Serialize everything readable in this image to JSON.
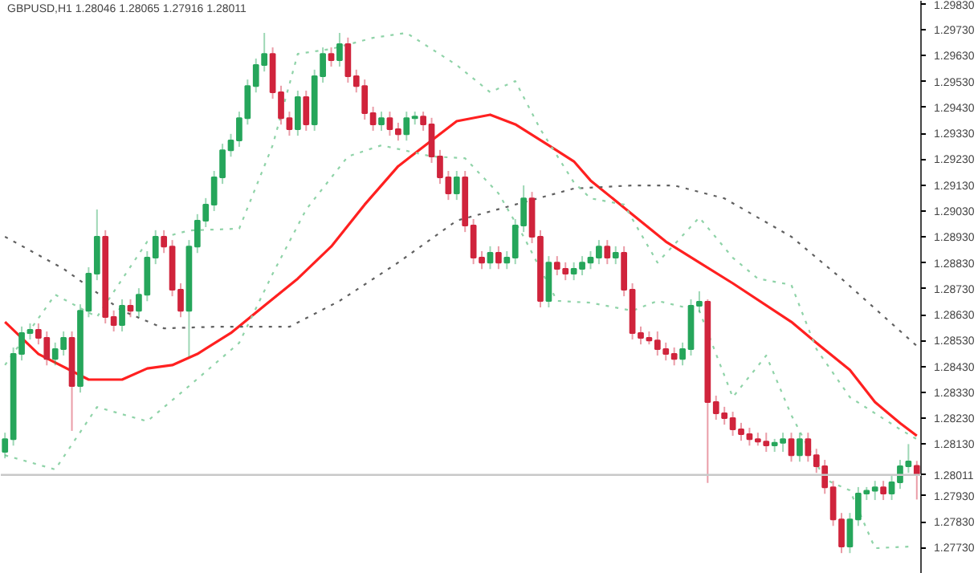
{
  "chart_data": {
    "type": "candlestick",
    "title": "GBPUSD,H1  1.28046 1.28065 1.27916 1.28011",
    "categories": [
      null,
      null,
      null,
      null,
      null,
      null,
      null,
      null,
      null,
      null,
      null,
      null,
      null,
      null,
      null,
      null,
      null,
      null,
      null,
      null,
      null,
      null,
      null,
      null,
      null,
      null,
      null,
      null,
      null,
      null,
      null,
      null,
      null,
      null,
      null,
      null,
      null,
      null,
      null,
      null,
      null,
      null,
      null,
      null,
      null,
      null,
      null,
      null,
      null,
      null,
      null,
      null,
      null,
      null,
      null,
      null,
      null,
      null,
      null,
      null,
      null,
      null,
      null,
      null,
      null,
      null,
      null,
      null,
      null,
      null,
      null,
      null,
      null,
      null,
      null,
      null,
      null,
      null,
      null,
      null,
      null,
      null,
      null,
      null,
      null,
      null,
      null,
      null,
      null,
      null,
      null,
      null,
      null,
      null,
      null,
      null,
      null,
      null,
      null,
      null,
      null,
      null,
      null,
      null,
      null,
      null,
      null,
      null,
      null,
      null
    ],
    "ohlc": [
      [
        1.281,
        1.28174,
        1.28075,
        1.28149
      ],
      [
        1.28149,
        1.28503,
        1.28124,
        1.28478
      ],
      [
        1.28478,
        1.28584,
        1.28453,
        1.28559
      ],
      [
        1.28559,
        1.28596,
        1.28534,
        1.28571
      ],
      [
        1.28571,
        1.28596,
        1.28515,
        1.2854
      ],
      [
        1.2854,
        1.28565,
        1.28434,
        1.28459
      ],
      [
        1.28459,
        1.28522,
        1.28434,
        1.28497
      ],
      [
        1.28497,
        1.28565,
        1.28472,
        1.2854
      ],
      [
        1.2854,
        1.28565,
        1.28181,
        1.28354
      ],
      [
        1.28354,
        1.2867,
        1.28329,
        1.28645
      ],
      [
        1.28645,
        1.28813,
        1.2862,
        1.28788
      ],
      [
        1.28788,
        1.29036,
        1.28763,
        1.28931
      ],
      [
        1.28931,
        1.28956,
        1.28596,
        1.28621
      ],
      [
        1.28621,
        1.28646,
        1.28565,
        1.2859
      ],
      [
        1.2859,
        1.28689,
        1.28565,
        1.28664
      ],
      [
        1.28664,
        1.28689,
        1.2862,
        1.28645
      ],
      [
        1.28645,
        1.28732,
        1.2862,
        1.28707
      ],
      [
        1.28707,
        1.28875,
        1.28682,
        1.2885
      ],
      [
        1.2885,
        1.28956,
        1.28825,
        1.28931
      ],
      [
        1.28931,
        1.28956,
        1.28868,
        1.28893
      ],
      [
        1.28893,
        1.28918,
        1.28701,
        1.28726
      ],
      [
        1.28726,
        1.28751,
        1.2862,
        1.28645
      ],
      [
        1.28645,
        1.28918,
        1.28466,
        1.28893
      ],
      [
        1.28893,
        1.29018,
        1.28868,
        1.28993
      ],
      [
        1.28993,
        1.2908,
        1.28968,
        1.29055
      ],
      [
        1.29055,
        1.29185,
        1.2903,
        1.2916
      ],
      [
        1.2916,
        1.2929,
        1.29135,
        1.29265
      ],
      [
        1.29265,
        1.29328,
        1.2924,
        1.29303
      ],
      [
        1.29303,
        1.29414,
        1.29278,
        1.29389
      ],
      [
        1.29389,
        1.29538,
        1.29364,
        1.29513
      ],
      [
        1.29513,
        1.29619,
        1.29488,
        1.29594
      ],
      [
        1.29594,
        1.29718,
        1.29569,
        1.29637
      ],
      [
        1.29637,
        1.29662,
        1.29464,
        1.29489
      ],
      [
        1.29489,
        1.29514,
        1.29364,
        1.29389
      ],
      [
        1.29389,
        1.29414,
        1.29321,
        1.29346
      ],
      [
        1.29346,
        1.29495,
        1.29321,
        1.2947
      ],
      [
        1.2947,
        1.29495,
        1.2934,
        1.29365
      ],
      [
        1.29365,
        1.29576,
        1.2934,
        1.29551
      ],
      [
        1.29551,
        1.29662,
        1.29526,
        1.29637
      ],
      [
        1.29637,
        1.29662,
        1.29588,
        1.29613
      ],
      [
        1.29613,
        1.29718,
        1.29588,
        1.29675
      ],
      [
        1.29675,
        1.297,
        1.29526,
        1.29551
      ],
      [
        1.29551,
        1.29576,
        1.29488,
        1.29513
      ],
      [
        1.29513,
        1.29538,
        1.29383,
        1.29408
      ],
      [
        1.29408,
        1.29433,
        1.2934,
        1.29365
      ],
      [
        1.29365,
        1.29414,
        1.2934,
        1.29389
      ],
      [
        1.29389,
        1.29414,
        1.29321,
        1.29346
      ],
      [
        1.29346,
        1.29371,
        1.29302,
        1.29327
      ],
      [
        1.29327,
        1.29414,
        1.29302,
        1.29389
      ],
      [
        1.29389,
        1.29414,
        1.29364,
        1.29395
      ],
      [
        1.29395,
        1.29414,
        1.2934,
        1.29365
      ],
      [
        1.29365,
        1.2939,
        1.29216,
        1.29241
      ],
      [
        1.29241,
        1.29266,
        1.29135,
        1.2916
      ],
      [
        1.2916,
        1.29185,
        1.29073,
        1.29098
      ],
      [
        1.29098,
        1.29185,
        1.29073,
        1.2916
      ],
      [
        1.2916,
        1.29185,
        1.28949,
        1.28974
      ],
      [
        1.28974,
        1.28999,
        1.28825,
        1.2885
      ],
      [
        1.2885,
        1.28875,
        1.28806,
        1.28831
      ],
      [
        1.28831,
        1.28894,
        1.28806,
        1.28869
      ],
      [
        1.28869,
        1.28894,
        1.28806,
        1.28831
      ],
      [
        1.28831,
        1.28875,
        1.28806,
        1.2885
      ],
      [
        1.2885,
        1.28999,
        1.28825,
        1.28974
      ],
      [
        1.28974,
        1.29129,
        1.28949,
        1.29079
      ],
      [
        1.29079,
        1.29104,
        1.28906,
        1.28931
      ],
      [
        1.28931,
        1.28956,
        1.28658,
        1.28683
      ],
      [
        1.28683,
        1.28856,
        1.28658,
        1.28831
      ],
      [
        1.28831,
        1.28856,
        1.28782,
        1.28807
      ],
      [
        1.28807,
        1.28832,
        1.28763,
        1.28788
      ],
      [
        1.28788,
        1.28832,
        1.28763,
        1.28807
      ],
      [
        1.28807,
        1.28856,
        1.28782,
        1.28831
      ],
      [
        1.28831,
        1.28875,
        1.28806,
        1.2885
      ],
      [
        1.2885,
        1.28918,
        1.28825,
        1.28893
      ],
      [
        1.28893,
        1.28918,
        1.28825,
        1.2885
      ],
      [
        1.2885,
        1.28894,
        1.28825,
        1.28869
      ],
      [
        1.28869,
        1.28894,
        1.28701,
        1.28726
      ],
      [
        1.28726,
        1.28751,
        1.28534,
        1.28559
      ],
      [
        1.28559,
        1.28584,
        1.28515,
        1.2854
      ],
      [
        1.2854,
        1.28565,
        1.28515,
        1.2853
      ],
      [
        1.2853,
        1.28565,
        1.28472,
        1.28497
      ],
      [
        1.28497,
        1.28522,
        1.28453,
        1.28478
      ],
      [
        1.28478,
        1.28503,
        1.28434,
        1.28459
      ],
      [
        1.28459,
        1.28522,
        1.28434,
        1.28497
      ],
      [
        1.28497,
        1.28689,
        1.28472,
        1.28664
      ],
      [
        1.28664,
        1.2872,
        1.28639,
        1.2868
      ],
      [
        1.2868,
        1.28689,
        1.2798,
        1.28292
      ],
      [
        1.28292,
        1.28317,
        1.28224,
        1.28249
      ],
      [
        1.28249,
        1.28274,
        1.28205,
        1.2823
      ],
      [
        1.2823,
        1.28255,
        1.28162,
        1.28187
      ],
      [
        1.28187,
        1.28212,
        1.28143,
        1.28168
      ],
      [
        1.28168,
        1.28193,
        1.28124,
        1.28149
      ],
      [
        1.28149,
        1.28174,
        1.28124,
        1.2814
      ],
      [
        1.2814,
        1.28174,
        1.281,
        1.28125
      ],
      [
        1.28125,
        1.2815,
        1.281,
        1.28135
      ],
      [
        1.28135,
        1.28174,
        1.281,
        1.28149
      ],
      [
        1.28149,
        1.28174,
        1.28062,
        1.28087
      ],
      [
        1.28087,
        1.28174,
        1.28062,
        1.28149
      ],
      [
        1.28149,
        1.28174,
        1.28062,
        1.28087
      ],
      [
        1.28087,
        1.28112,
        1.28019,
        1.28044
      ],
      [
        1.28044,
        1.28069,
        1.27938,
        1.27963
      ],
      [
        1.27963,
        1.27988,
        1.27814,
        1.27839
      ],
      [
        1.27839,
        1.27864,
        1.27709,
        1.27734
      ],
      [
        1.27734,
        1.27864,
        1.27709,
        1.27839
      ],
      [
        1.27839,
        1.27964,
        1.27814,
        1.27939
      ],
      [
        1.27939,
        1.27964,
        1.27914,
        1.2795
      ],
      [
        1.2795,
        1.27988,
        1.27914,
        1.27963
      ],
      [
        1.27963,
        1.27988,
        1.27914,
        1.27939
      ],
      [
        1.27939,
        1.28007,
        1.27914,
        1.27982
      ],
      [
        1.27982,
        1.28069,
        1.27957,
        1.28044
      ],
      [
        1.28044,
        1.2813,
        1.28019,
        1.28063
      ],
      [
        1.28046,
        1.28065,
        1.27916,
        1.28011
      ]
    ],
    "colors": [
      "#26a65b",
      "#26a65b",
      "#26a65b",
      "#26a65b",
      "#d0243c",
      "#d0243c",
      "#26a65b",
      "#26a65b",
      "#d0243c",
      "#26a65b",
      "#26a65b",
      "#26a65b",
      "#d0243c",
      "#d0243c",
      "#26a65b",
      "#d0243c",
      "#26a65b",
      "#26a65b",
      "#26a65b",
      "#d0243c",
      "#d0243c",
      "#d0243c",
      "#26a65b",
      "#26a65b",
      "#26a65b",
      "#26a65b",
      "#26a65b",
      "#26a65b",
      "#26a65b",
      "#26a65b",
      "#26a65b",
      "#26a65b",
      "#d0243c",
      "#d0243c",
      "#d0243c",
      "#26a65b",
      "#d0243c",
      "#26a65b",
      "#26a65b",
      "#d0243c",
      "#26a65b",
      "#d0243c",
      "#d0243c",
      "#d0243c",
      "#d0243c",
      "#26a65b",
      "#d0243c",
      "#d0243c",
      "#26a65b",
      "#26a65b",
      "#d0243c",
      "#d0243c",
      "#d0243c",
      "#d0243c",
      "#26a65b",
      "#d0243c",
      "#d0243c",
      "#d0243c",
      "#26a65b",
      "#d0243c",
      "#26a65b",
      "#26a65b",
      "#26a65b",
      "#d0243c",
      "#d0243c",
      "#26a65b",
      "#d0243c",
      "#d0243c",
      "#26a65b",
      "#26a65b",
      "#26a65b",
      "#26a65b",
      "#d0243c",
      "#26a65b",
      "#d0243c",
      "#d0243c",
      "#d0243c",
      "#d0243c",
      "#d0243c",
      "#d0243c",
      "#d0243c",
      "#26a65b",
      "#26a65b",
      "#26a65b",
      "#d0243c",
      "#d0243c",
      "#d0243c",
      "#d0243c",
      "#d0243c",
      "#d0243c",
      "#d0243c",
      "#d0243c",
      "#26a65b",
      "#26a65b",
      "#d0243c",
      "#26a65b",
      "#d0243c",
      "#d0243c",
      "#d0243c",
      "#d0243c",
      "#d0243c",
      "#26a65b",
      "#26a65b",
      "#26a65b",
      "#26a65b",
      "#d0243c",
      "#26a65b",
      "#26a65b",
      "#26a65b",
      "#d0243c"
    ],
    "series": [
      {
        "type": "line",
        "color": "#ff2020",
        "line_style": "solid",
        "values": [
          1.28602,
          null,
          null,
          null,
          1.28478,
          null,
          null,
          null,
          null,
          null,
          1.28379,
          null,
          null,
          null,
          1.28379,
          null,
          null,
          1.28422,
          null,
          null,
          1.28435,
          null,
          null,
          1.28478,
          null,
          null,
          null,
          1.28559,
          null,
          null,
          null,
          1.28664,
          null,
          null,
          null,
          1.28769,
          null,
          null,
          null,
          1.28893,
          null,
          null,
          null,
          1.29055,
          null,
          null,
          null,
          1.29203,
          null,
          null,
          null,
          1.29303,
          null,
          null,
          1.29377,
          null,
          null,
          null,
          1.29402,
          null,
          null,
          1.29365,
          null,
          null,
          null,
          1.29284,
          null,
          null,
          1.29222,
          null,
          1.29148,
          null,
          null,
          null,
          null,
          1.29017,
          null,
          null,
          null,
          1.28912,
          null,
          null,
          null,
          1.28831,
          null,
          null,
          null,
          1.28751,
          null,
          null,
          null,
          null,
          null,
          null,
          1.28602,
          null,
          null,
          1.28521,
          null,
          null,
          null,
          1.28416,
          null,
          null,
          1.28292,
          null,
          null,
          1.28211,
          null,
          1.28162
        ]
      },
      {
        "type": "line",
        "color": "#606060",
        "line_style": "dotted",
        "values": [
          1.28931,
          null,
          null,
          null,
          null,
          null,
          null,
          1.28807,
          null,
          null,
          null,
          null,
          null,
          null,
          1.28645,
          null,
          null,
          null,
          null,
          1.28577,
          null,
          null,
          null,
          null,
          null,
          1.28583,
          null,
          null,
          null,
          null,
          null,
          null,
          null,
          null,
          1.28583,
          null,
          null,
          null,
          null,
          null,
          1.28683,
          null,
          null,
          null,
          null,
          null,
          null,
          1.28831,
          null,
          null,
          null,
          null,
          null,
          null,
          1.28993,
          null,
          null,
          null,
          null,
          null,
          null,
          1.29055,
          null,
          null,
          null,
          null,
          null,
          null,
          1.29117,
          null,
          null,
          null,
          null,
          null,
          null,
          1.29129,
          null,
          null,
          null,
          null,
          1.29129,
          null,
          null,
          null,
          null,
          null,
          1.29079,
          null,
          null,
          null,
          null,
          null,
          null,
          null,
          1.28931,
          null,
          null,
          null,
          null,
          null,
          1.28769,
          null,
          null,
          null,
          null,
          null,
          null,
          null,
          null,
          1.28509
        ]
      },
      {
        "type": "line",
        "color": "#8fd3a8",
        "line_style": "dotted",
        "values": [
          1.28435,
          null,
          null,
          null,
          null,
          null,
          1.28707,
          null,
          null,
          null,
          null,
          1.28621,
          null,
          null,
          null,
          null,
          null,
          1.28912,
          null,
          null,
          null,
          null,
          1.28955,
          null,
          null,
          null,
          null,
          null,
          1.28962,
          null,
          null,
          null,
          1.29284,
          null,
          null,
          1.29637,
          null,
          null,
          null,
          1.29656,
          null,
          null,
          null,
          null,
          1.29699,
          null,
          null,
          null,
          1.29718,
          null,
          null,
          null,
          null,
          null,
          1.29594,
          null,
          null,
          null,
          1.29489,
          null,
          null,
          1.29532,
          null,
          null,
          1.29346,
          null,
          null,
          null,
          1.29141,
          null,
          1.29079,
          null,
          null,
          null,
          1.29055,
          null,
          null,
          null,
          1.28831,
          null,
          null,
          null,
          null,
          1.29005,
          null,
          null,
          null,
          1.2885,
          null,
          null,
          1.28769,
          null,
          null,
          null,
          1.28745,
          null,
          null,
          1.28497,
          null,
          null,
          null,
          1.28311,
          null,
          null,
          null,
          null,
          null,
          1.28187,
          null,
          1.28149
        ]
      },
      {
        "type": "line",
        "color": "#8fd3a8",
        "line_style": "dotted",
        "values": [
          1.28087,
          null,
          null,
          null,
          null,
          null,
          1.28032,
          null,
          null,
          null,
          null,
          1.28273,
          null,
          null,
          null,
          null,
          null,
          1.28218,
          null,
          null,
          null,
          null,
          1.28354,
          null,
          null,
          null,
          null,
          null,
          1.28521,
          null,
          null,
          null,
          1.28788,
          null,
          null,
          null,
          1.29036,
          null,
          null,
          null,
          null,
          1.29241,
          null,
          null,
          null,
          1.29284,
          null,
          null,
          null,
          null,
          null,
          1.29241,
          null,
          null,
          null,
          1.29234,
          null,
          null,
          null,
          1.29098,
          null,
          null,
          1.28931,
          null,
          null,
          null,
          1.28683,
          null,
          null,
          null,
          1.28676,
          null,
          null,
          null,
          null,
          1.28645,
          null,
          null,
          1.28683,
          null,
          null,
          null,
          null,
          1.28645,
          null,
          null,
          null,
          1.28311,
          null,
          null,
          null,
          1.28472,
          null,
          null,
          1.28242,
          null,
          null,
          null,
          1.27994,
          null,
          null,
          1.27951,
          null,
          null,
          1.27728,
          null,
          null,
          null,
          1.27734,
          null
        ]
      }
    ],
    "ylim": [
      1.27629,
      1.29842
    ],
    "yticks": [
      {
        "value": 1.2983,
        "label": "1.29830"
      },
      {
        "value": 1.2973,
        "label": "1.29730"
      },
      {
        "value": 1.2963,
        "label": "1.29630"
      },
      {
        "value": 1.2953,
        "label": "1.29530"
      },
      {
        "value": 1.2943,
        "label": "1.29430"
      },
      {
        "value": 1.2933,
        "label": "1.29330"
      },
      {
        "value": 1.2923,
        "label": "1.29230"
      },
      {
        "value": 1.2913,
        "label": "1.29130"
      },
      {
        "value": 1.2903,
        "label": "1.29030"
      },
      {
        "value": 1.2893,
        "label": "1.28930"
      },
      {
        "value": 1.2883,
        "label": "1.28830"
      },
      {
        "value": 1.2873,
        "label": "1.28730"
      },
      {
        "value": 1.2863,
        "label": "1.28630"
      },
      {
        "value": 1.2853,
        "label": "1.28530"
      },
      {
        "value": 1.2843,
        "label": "1.28430"
      },
      {
        "value": 1.2833,
        "label": "1.28330"
      },
      {
        "value": 1.2823,
        "label": "1.28230"
      },
      {
        "value": 1.2813,
        "label": "1.28130"
      },
      {
        "value": 1.2793,
        "label": "1.27930"
      },
      {
        "value": 1.2783,
        "label": "1.27830"
      },
      {
        "value": 1.2773,
        "label": "1.27730"
      }
    ],
    "ref_lines": [
      {
        "axis": "y",
        "value": 1.28011,
        "label": "1.28011",
        "color": "#c8c8c8"
      }
    ],
    "tick_labels": "y"
  }
}
